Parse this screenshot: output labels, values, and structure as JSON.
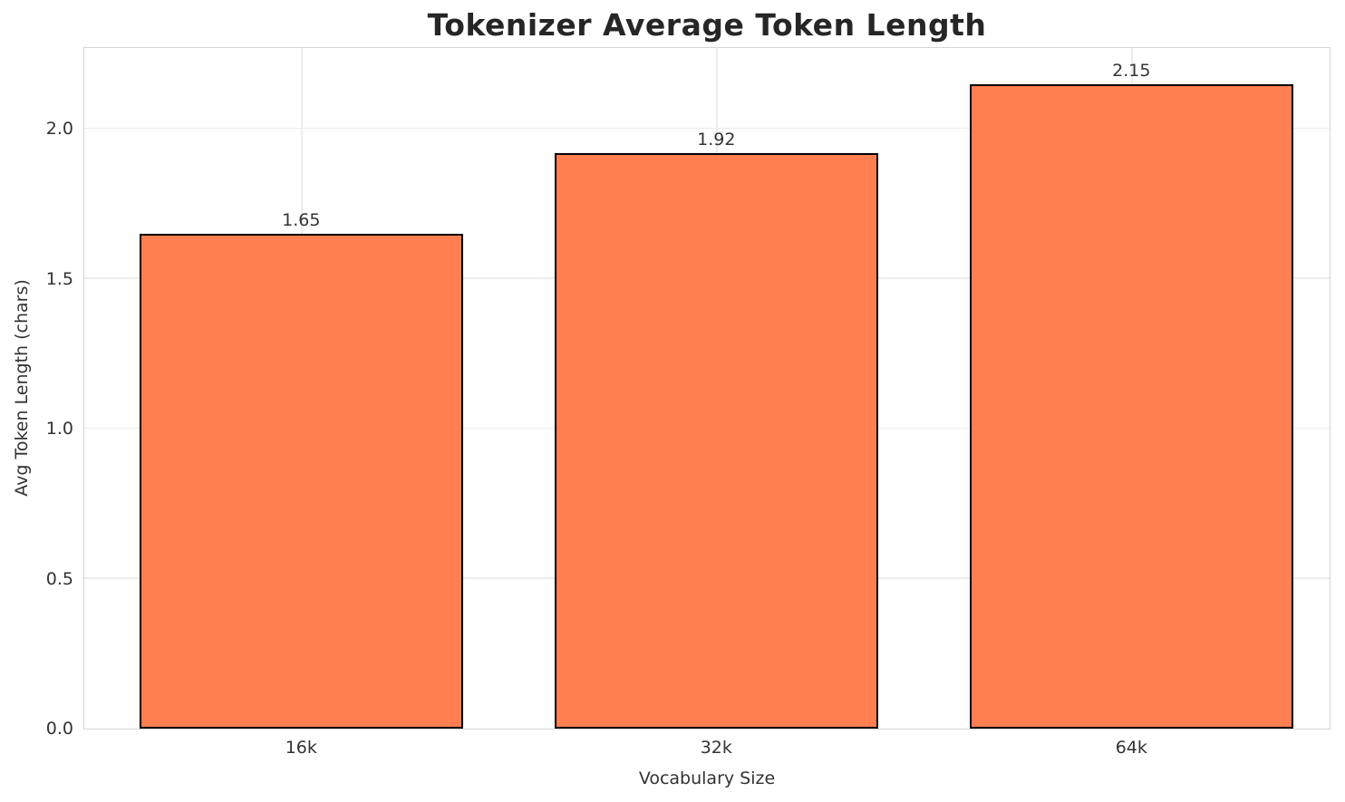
{
  "chart_data": {
    "type": "bar",
    "title": "Tokenizer Average Token Length",
    "xlabel": "Vocabulary Size",
    "ylabel": "Avg Token Length (chars)",
    "categories": [
      "16k",
      "32k",
      "64k"
    ],
    "values": [
      1.65,
      1.92,
      2.15
    ],
    "value_labels": [
      "1.65",
      "1.92",
      "2.15"
    ],
    "yticks": [
      0.0,
      0.5,
      1.0,
      1.5,
      2.0
    ],
    "ytick_labels": [
      "0.0",
      "0.5",
      "1.0",
      "1.5",
      "2.0"
    ],
    "ylim": [
      0,
      2.27
    ],
    "grid": true,
    "legend_position": "none",
    "bar_width_fraction": 0.26,
    "colors": {
      "bar_fill": "#FF7F50",
      "bar_edge": "#000000",
      "grid": "#ececec",
      "spine": "#d5d5d5",
      "tick_text": "#333333",
      "title_text": "#262626",
      "background": "#ffffff"
    }
  }
}
